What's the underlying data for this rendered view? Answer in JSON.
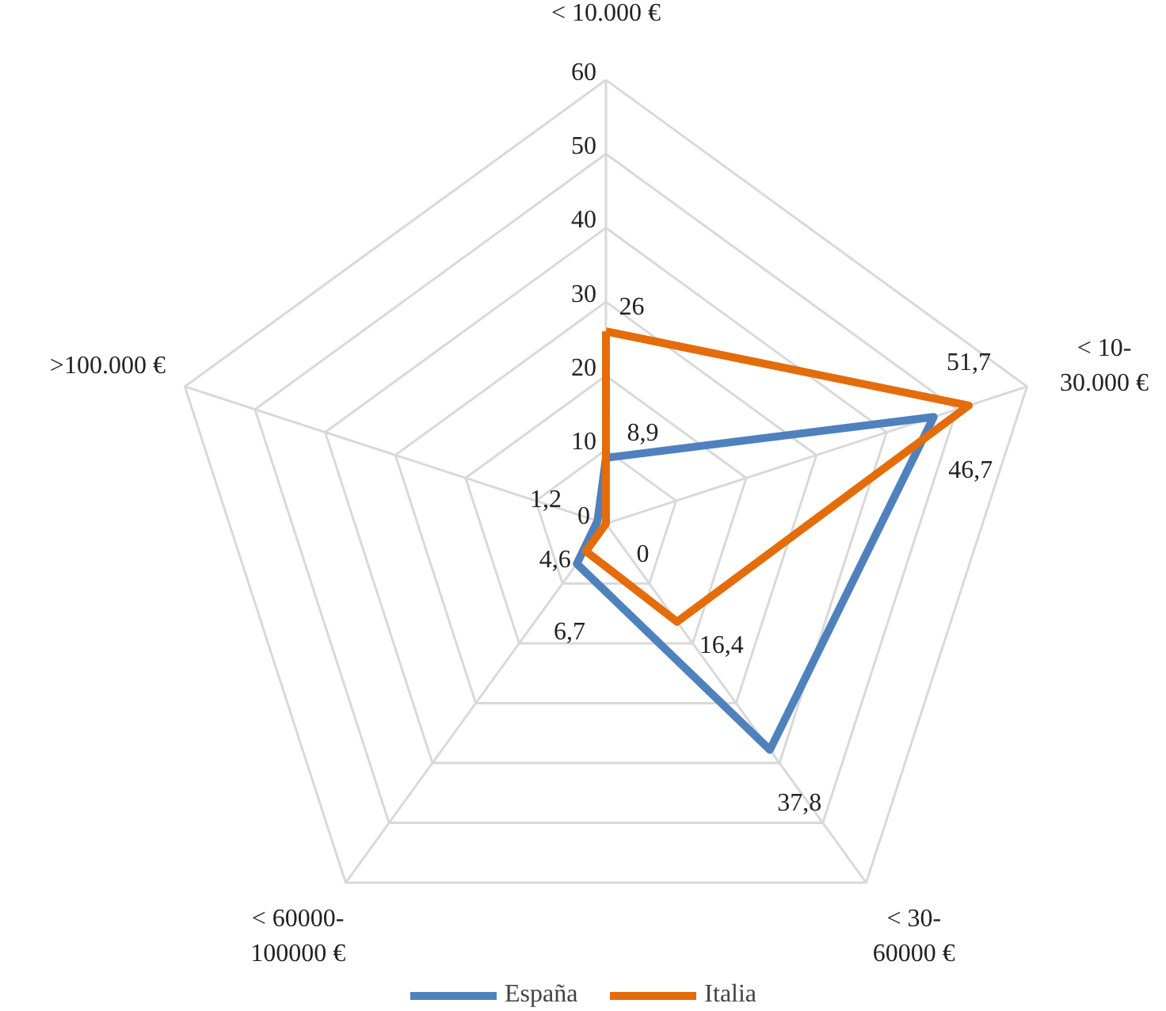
{
  "chart_data": {
    "type": "radar",
    "categories": [
      "< 10.000 €",
      "< 10-\n30.000 €",
      "< 30-\n60000 €",
      "< 60000-\n100000 €",
      ">100.000 €"
    ],
    "series": [
      {
        "name": "España",
        "color": "#4f81bd",
        "values": [
          8.9,
          46.7,
          37.8,
          6.7,
          1.2
        ],
        "value_labels": [
          "8,9",
          "46,7",
          "37,8",
          "6,7",
          "1,2"
        ]
      },
      {
        "name": "Italia",
        "color": "#e46c0a",
        "values": [
          26,
          51.7,
          16.4,
          4.6,
          0
        ],
        "value_labels": [
          "26",
          "51,7",
          "16,4",
          "4,6",
          "0"
        ]
      }
    ],
    "ylim": [
      0,
      60
    ],
    "yticks": [
      0,
      10,
      20,
      30,
      40,
      50,
      60
    ],
    "grid": true,
    "legend": "bottom",
    "line_style": "solid",
    "marker": "none"
  }
}
